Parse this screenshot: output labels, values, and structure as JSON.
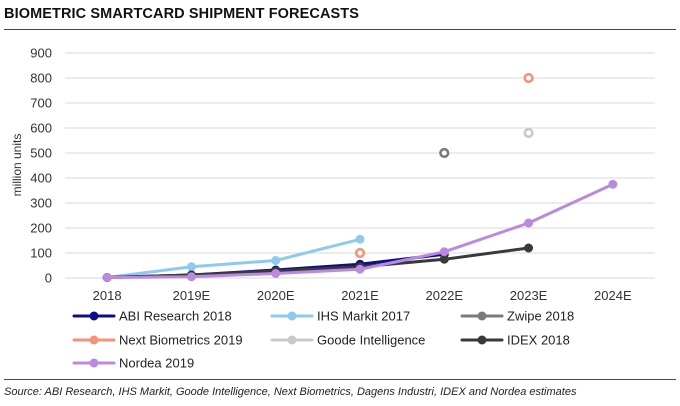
{
  "header": {
    "title": "BIOMETRIC SMARTCARD SHIPMENT FORECASTS"
  },
  "footer": {
    "source": "Source: ABI Research, IHS Markit, Goode Intelligence, Next Biometrics, Dagens Industri, IDEX and Nordea estimates"
  },
  "chart_data": {
    "type": "line",
    "title": "BIOMETRIC SMARTCARD SHIPMENT FORECASTS",
    "xlabel": "",
    "ylabel": "million units",
    "categories": [
      "2018",
      "2019E",
      "2020E",
      "2021E",
      "2022E",
      "2023E",
      "2024E"
    ],
    "ylim": [
      0,
      900
    ],
    "yticks": [
      0,
      100,
      200,
      300,
      400,
      500,
      600,
      700,
      800,
      900
    ],
    "grid": "horizontal",
    "legend_position": "bottom",
    "series": [
      {
        "name": "ABI Research 2018",
        "color": "#0d0d8a",
        "values": [
          2,
          12,
          32,
          55,
          95,
          null,
          null
        ]
      },
      {
        "name": "IHS Markit 2017",
        "color": "#8ec9f0",
        "values": [
          2,
          45,
          70,
          155,
          null,
          null,
          null
        ]
      },
      {
        "name": "Zwipe 2018",
        "color": "#7a7a7a",
        "values": [
          null,
          null,
          null,
          null,
          500,
          null,
          null
        ]
      },
      {
        "name": "Next Biometrics 2019",
        "color": "#f4937a",
        "values": [
          null,
          null,
          null,
          100,
          null,
          800,
          null
        ]
      },
      {
        "name": "Goode Intelligence",
        "color": "#c9c9c9",
        "values": [
          null,
          null,
          null,
          null,
          null,
          580,
          null
        ]
      },
      {
        "name": "IDEX 2018",
        "color": "#3a3a3a",
        "values": [
          2,
          12,
          28,
          45,
          75,
          120,
          null
        ]
      },
      {
        "name": "Nordea 2019",
        "color": "#b98ae0",
        "values": [
          2,
          5,
          18,
          35,
          105,
          220,
          375
        ]
      }
    ]
  }
}
